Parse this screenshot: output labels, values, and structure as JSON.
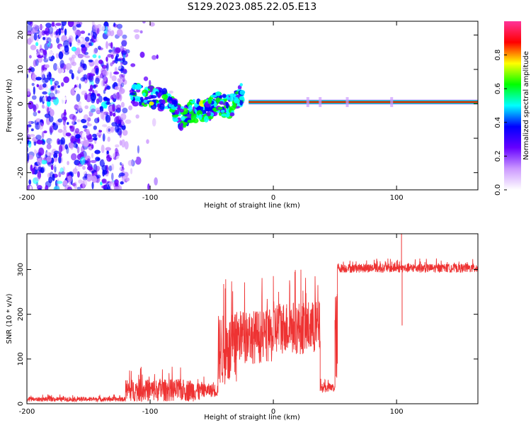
{
  "figure_title": "S129.2023.085.22.05.E13",
  "chart_data": [
    {
      "type": "heatmap",
      "title": "S129.2023.085.22.05.E13",
      "xlabel": "Height of straight line (km)",
      "ylabel": "Frequency (Hz)",
      "xlim": [
        -200,
        166
      ],
      "ylim": [
        -25,
        24
      ],
      "xticks": [
        -200,
        -100,
        0,
        100
      ],
      "yticks": [
        -20,
        -10,
        0,
        10,
        20
      ],
      "colorbar": {
        "label": "Normalized spectral amplitude",
        "range": [
          0.0,
          1.0
        ],
        "ticks": [
          0.0,
          0.2,
          0.4,
          0.6,
          0.8
        ],
        "colors": [
          "#ffffff",
          "#cc99ff",
          "#6600ff",
          "#0000ff",
          "#00ffff",
          "#00ff00",
          "#ffff00",
          "#ff0000",
          "#ff3399"
        ]
      },
      "features": [
        {
          "name": "broadband noise",
          "x_range": [
            -200,
            -120
          ],
          "freq_range": [
            -25,
            24
          ],
          "amplitude": 0.12
        },
        {
          "name": "descending trace",
          "points": [
            [
              -115,
              3
            ],
            [
              -100,
              2
            ],
            [
              -85,
              1
            ],
            [
              -75,
              -4
            ],
            [
              -65,
              -2
            ],
            [
              -55,
              -2
            ],
            [
              -45,
              0
            ],
            [
              -35,
              -1
            ],
            [
              -25,
              3
            ]
          ],
          "amplitude": 0.35
        },
        {
          "name": "carrier line",
          "x_range": [
            -20,
            166
          ],
          "freq": 0.5,
          "amplitude": 0.9
        }
      ]
    },
    {
      "type": "line",
      "xlabel": "Height of straight line (km)",
      "ylabel": "SNR (10 * v/v)",
      "xlim": [
        -200,
        166
      ],
      "ylim": [
        0,
        380
      ],
      "xticks": [
        -200,
        -100,
        0,
        100
      ],
      "yticks": [
        0,
        100,
        200,
        300
      ],
      "color": "#ee3333",
      "segments": [
        {
          "x_range": [
            -200,
            -120
          ],
          "mean": 10,
          "spread": 5
        },
        {
          "x_range": [
            -120,
            -60
          ],
          "mean": 30,
          "spread": 25
        },
        {
          "x_range": [
            -60,
            -45
          ],
          "mean": 30,
          "spread": 15
        },
        {
          "x_range": [
            -45,
            -30
          ],
          "mean": 120,
          "spread": 80
        },
        {
          "x_range": [
            -30,
            0
          ],
          "mean": 150,
          "spread": 60
        },
        {
          "x_range": [
            0,
            38
          ],
          "mean": 170,
          "spread": 60
        },
        {
          "x_range": [
            38,
            50
          ],
          "mean": 35,
          "spread": 10
        },
        {
          "x_range": [
            50,
            52
          ],
          "mean": 150,
          "spread": 100
        },
        {
          "x_range": [
            52,
            166
          ],
          "mean": 303,
          "spread": 10
        }
      ],
      "spikes": [
        {
          "x": 104,
          "y": 380
        },
        {
          "x": 104.5,
          "y": 175
        }
      ]
    }
  ]
}
